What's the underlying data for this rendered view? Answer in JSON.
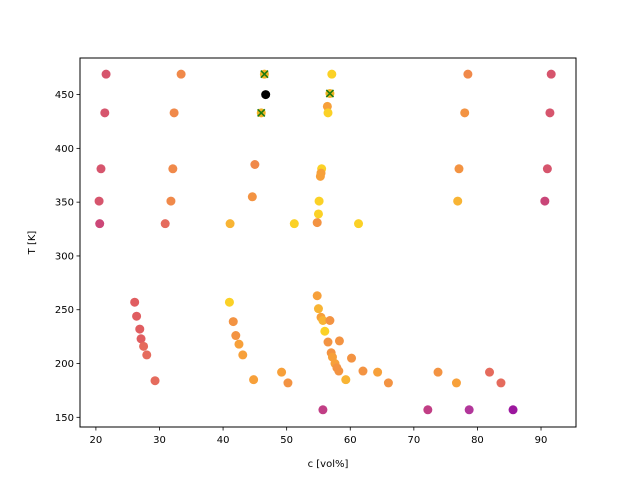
{
  "chart_data": {
    "type": "scatter",
    "xlabel": "c [vol%]",
    "ylabel": "T [K]",
    "xlim": [
      17.5,
      95.5
    ],
    "ylim": [
      141,
      484
    ],
    "xticks": [
      20,
      30,
      40,
      50,
      60,
      70,
      80,
      90
    ],
    "yticks": [
      150,
      200,
      250,
      300,
      350,
      400,
      450
    ],
    "grid": false,
    "series": [
      {
        "marker": "circle",
        "points": [
          {
            "x": 21.6,
            "y": 469,
            "color": "#d6556d"
          },
          {
            "x": 33.4,
            "y": 469,
            "color": "#f0894a"
          },
          {
            "x": 57.1,
            "y": 469,
            "color": "#fbd126"
          },
          {
            "x": 78.5,
            "y": 469,
            "color": "#f0894a"
          },
          {
            "x": 91.6,
            "y": 469,
            "color": "#d6556d"
          },
          {
            "x": 46.7,
            "y": 450,
            "color": "#000000"
          },
          {
            "x": 56.4,
            "y": 439,
            "color": "#f7a03a"
          },
          {
            "x": 21.4,
            "y": 433,
            "color": "#d6556d"
          },
          {
            "x": 32.3,
            "y": 433,
            "color": "#f0894a"
          },
          {
            "x": 56.5,
            "y": 433,
            "color": "#fbd126"
          },
          {
            "x": 78.0,
            "y": 433,
            "color": "#f39342"
          },
          {
            "x": 91.4,
            "y": 433,
            "color": "#d6556d"
          },
          {
            "x": 45.0,
            "y": 385,
            "color": "#f0894a"
          },
          {
            "x": 20.8,
            "y": 381,
            "color": "#d6556d"
          },
          {
            "x": 32.1,
            "y": 381,
            "color": "#f0894a"
          },
          {
            "x": 55.5,
            "y": 381,
            "color": "#fbd126"
          },
          {
            "x": 77.1,
            "y": 381,
            "color": "#f39342"
          },
          {
            "x": 91.0,
            "y": 381,
            "color": "#d6556d"
          },
          {
            "x": 55.4,
            "y": 377,
            "color": "#f7a03a"
          },
          {
            "x": 55.3,
            "y": 374,
            "color": "#f7a03a"
          },
          {
            "x": 44.6,
            "y": 355,
            "color": "#f39342"
          },
          {
            "x": 20.5,
            "y": 351,
            "color": "#d6556d"
          },
          {
            "x": 31.8,
            "y": 351,
            "color": "#f0894a"
          },
          {
            "x": 55.1,
            "y": 351,
            "color": "#fbd126"
          },
          {
            "x": 76.9,
            "y": 351,
            "color": "#f8b434"
          },
          {
            "x": 90.6,
            "y": 351,
            "color": "#c94578"
          },
          {
            "x": 55.0,
            "y": 339,
            "color": "#fbd126"
          },
          {
            "x": 20.6,
            "y": 330,
            "color": "#cc4778"
          },
          {
            "x": 30.9,
            "y": 330,
            "color": "#e56b5d"
          },
          {
            "x": 41.1,
            "y": 330,
            "color": "#f8b434"
          },
          {
            "x": 51.2,
            "y": 330,
            "color": "#fbd126"
          },
          {
            "x": 54.8,
            "y": 331,
            "color": "#f39342"
          },
          {
            "x": 61.3,
            "y": 330,
            "color": "#fbd126"
          },
          {
            "x": 54.8,
            "y": 263,
            "color": "#f7a03a"
          },
          {
            "x": 26.1,
            "y": 257,
            "color": "#e05d60"
          },
          {
            "x": 41.0,
            "y": 257,
            "color": "#fbd126"
          },
          {
            "x": 55.0,
            "y": 251,
            "color": "#f8b434"
          },
          {
            "x": 26.4,
            "y": 244,
            "color": "#e05d60"
          },
          {
            "x": 55.4,
            "y": 243,
            "color": "#f7a03a"
          },
          {
            "x": 55.7,
            "y": 240,
            "color": "#f8b434"
          },
          {
            "x": 56.8,
            "y": 240,
            "color": "#f39342"
          },
          {
            "x": 41.6,
            "y": 239,
            "color": "#f39342"
          },
          {
            "x": 26.9,
            "y": 232,
            "color": "#e05d60"
          },
          {
            "x": 56.0,
            "y": 230,
            "color": "#fbd126"
          },
          {
            "x": 42.0,
            "y": 226,
            "color": "#f39342"
          },
          {
            "x": 27.1,
            "y": 223,
            "color": "#e05d60"
          },
          {
            "x": 58.3,
            "y": 221,
            "color": "#f39342"
          },
          {
            "x": 56.5,
            "y": 220,
            "color": "#f39342"
          },
          {
            "x": 42.5,
            "y": 218,
            "color": "#f7a03a"
          },
          {
            "x": 27.5,
            "y": 216,
            "color": "#e56b5d"
          },
          {
            "x": 57.0,
            "y": 210,
            "color": "#f39342"
          },
          {
            "x": 43.1,
            "y": 208,
            "color": "#f7a03a"
          },
          {
            "x": 28.0,
            "y": 208,
            "color": "#e56b5d"
          },
          {
            "x": 57.2,
            "y": 206,
            "color": "#f7a03a"
          },
          {
            "x": 60.2,
            "y": 205,
            "color": "#f39342"
          },
          {
            "x": 57.6,
            "y": 200,
            "color": "#f7a03a"
          },
          {
            "x": 57.9,
            "y": 196,
            "color": "#f39342"
          },
          {
            "x": 58.2,
            "y": 193,
            "color": "#f39342"
          },
          {
            "x": 62.0,
            "y": 193,
            "color": "#f39342"
          },
          {
            "x": 49.2,
            "y": 192,
            "color": "#f7a03a"
          },
          {
            "x": 64.3,
            "y": 192,
            "color": "#f7a03a"
          },
          {
            "x": 73.8,
            "y": 192,
            "color": "#f39342"
          },
          {
            "x": 81.9,
            "y": 192,
            "color": "#e56b5d"
          },
          {
            "x": 44.8,
            "y": 185,
            "color": "#f7a03a"
          },
          {
            "x": 59.3,
            "y": 185,
            "color": "#f8b434"
          },
          {
            "x": 29.3,
            "y": 184,
            "color": "#e56b5d"
          },
          {
            "x": 50.2,
            "y": 182,
            "color": "#f39342"
          },
          {
            "x": 66.0,
            "y": 182,
            "color": "#f39342"
          },
          {
            "x": 76.7,
            "y": 182,
            "color": "#f7a03a"
          },
          {
            "x": 83.7,
            "y": 182,
            "color": "#e56b5d"
          },
          {
            "x": 55.7,
            "y": 157,
            "color": "#c13e85"
          },
          {
            "x": 72.2,
            "y": 157,
            "color": "#c13e85"
          },
          {
            "x": 78.7,
            "y": 157,
            "color": "#b2369a"
          },
          {
            "x": 85.6,
            "y": 157,
            "color": "#9c179e"
          }
        ]
      },
      {
        "marker": "x",
        "marker_color": "#1e7a10",
        "points": [
          {
            "x": 46.5,
            "y": 469,
            "color": "#f0b323"
          },
          {
            "x": 56.8,
            "y": 451,
            "color": "#f0b323"
          },
          {
            "x": 46.0,
            "y": 433,
            "color": "#f0b323"
          }
        ]
      }
    ]
  }
}
